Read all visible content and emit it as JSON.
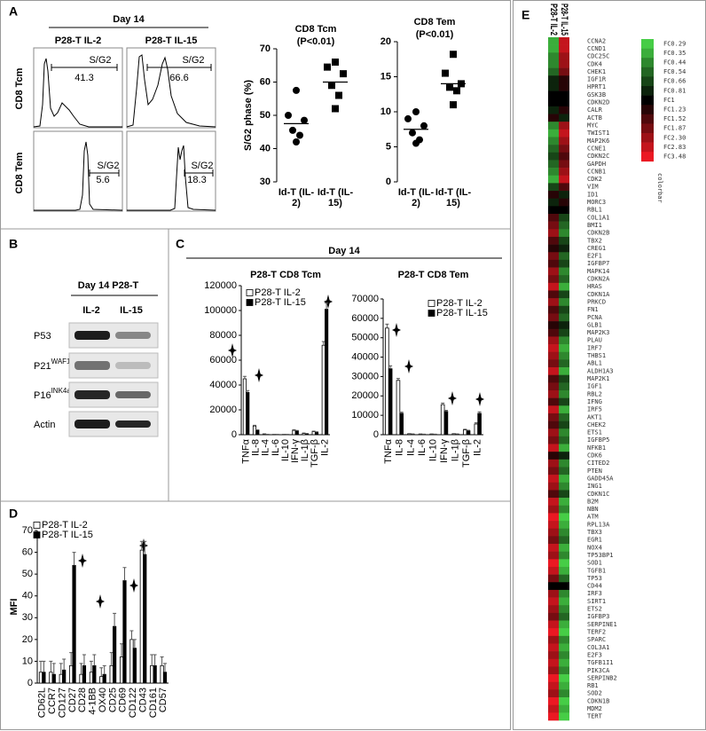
{
  "panels": {
    "A": {
      "label": "A"
    },
    "B": {
      "label": "B"
    },
    "C": {
      "label": "C",
      "title": "Day 14"
    },
    "D": {
      "label": "D"
    },
    "E": {
      "label": "E"
    }
  },
  "flow": {
    "title": "Day 14",
    "columns": [
      "P28-T IL-2",
      "P28-T IL-15"
    ],
    "rows": [
      "CD8 Tcm",
      "CD8 Tem"
    ],
    "gate_label": "S/G2",
    "gate_values": [
      [
        41.3,
        66.6
      ],
      [
        5.6,
        18.3
      ]
    ]
  },
  "blot": {
    "title": "Day 14 P28-T",
    "columns": [
      "IL-2",
      "IL-15"
    ],
    "rows": [
      {
        "name": "P53"
      },
      {
        "name": "P21",
        "sup": "WAF1"
      },
      {
        "name": "P16",
        "sup": "INK4a"
      },
      {
        "name": "Actin"
      }
    ]
  },
  "chart_data": [
    {
      "type": "scatter",
      "title": "CD8 Tcm",
      "subtitle": "(P<0.01)",
      "y_label": "S/G2 phase (%)",
      "categories": [
        "Id-T (IL-2)",
        "Id-T (IL-15)"
      ],
      "markers": [
        "circle",
        "square"
      ],
      "color": "#000000",
      "values": [
        [
          57.5,
          50,
          48.5,
          45.5,
          44,
          42
        ],
        [
          66,
          64.5,
          62.5,
          59,
          56,
          52
        ]
      ],
      "means": [
        47.5,
        60
      ],
      "ylim": [
        30,
        70
      ],
      "yticks": [
        30,
        40,
        50,
        60,
        70
      ]
    },
    {
      "type": "scatter",
      "title": "CD8 Tem",
      "subtitle": "(P<0.01)",
      "categories": [
        "Id-T (IL-2)",
        "Id-T (IL-15)"
      ],
      "markers": [
        "circle",
        "square"
      ],
      "color": "#000000",
      "values": [
        [
          10,
          9,
          8,
          7,
          6,
          5.5
        ],
        [
          18.2,
          15.5,
          14,
          13.5,
          13,
          11
        ]
      ],
      "means": [
        7.5,
        14
      ],
      "ylim": [
        0,
        20
      ],
      "yticks": [
        0,
        5,
        10,
        15,
        20
      ]
    },
    {
      "type": "bar",
      "title": "P28-T CD8 Tcm",
      "categories": [
        "TNFα",
        "IL-8",
        "IL-4",
        "IL-6",
        "IL-10",
        "IFN-γ",
        "IL-1β",
        "TGF-β",
        "IL-2"
      ],
      "legend": "upper left",
      "series": [
        {
          "name": "P28-T IL-2",
          "color": "#ffffff",
          "values": [
            45000,
            7000,
            500,
            300,
            300,
            3500,
            1000,
            2500,
            72000
          ],
          "errors": [
            2000,
            600,
            200,
            100,
            100,
            500,
            300,
            400,
            3000
          ]
        },
        {
          "name": "P28-T IL-15",
          "color": "#000000",
          "values": [
            34000,
            3500,
            300,
            200,
            200,
            3000,
            800,
            2000,
            101000
          ],
          "errors": [
            1500,
            400,
            100,
            100,
            100,
            400,
            200,
            300,
            5000
          ]
        }
      ],
      "ylim": [
        0,
        120000
      ],
      "yticks": [
        0,
        20000,
        40000,
        60000,
        80000,
        100000,
        120000
      ]
    },
    {
      "type": "bar",
      "title": "P28-T CD8 Tem",
      "categories": [
        "TNFα",
        "IL-8",
        "IL-4",
        "IL-6",
        "IL-10",
        "IFN-γ",
        "IL-1β",
        "TGF-β",
        "IL-2"
      ],
      "legend": "upper right",
      "series": [
        {
          "name": "P28-T IL-2",
          "color": "#ffffff",
          "values": [
            55000,
            28000,
            500,
            300,
            300,
            15500,
            500,
            2500,
            5500
          ],
          "errors": [
            2000,
            1000,
            100,
            100,
            100,
            800,
            100,
            300,
            600
          ]
        },
        {
          "name": "P28-T IL-15",
          "color": "#000000",
          "values": [
            34000,
            11000,
            300,
            200,
            200,
            12000,
            300,
            2000,
            11000
          ],
          "errors": [
            1500,
            600,
            100,
            100,
            100,
            600,
            100,
            300,
            800
          ]
        }
      ],
      "ylim": [
        0,
        70000
      ],
      "yticks": [
        0,
        10000,
        20000,
        30000,
        40000,
        50000,
        60000,
        70000
      ]
    },
    {
      "type": "bar",
      "y_label": "MFI",
      "categories": [
        "CD62L",
        "CCR7",
        "CD127",
        "CD27",
        "CD28",
        "4-1BB",
        "OX40",
        "CD25",
        "CD69",
        "CD122",
        "CD43",
        "CD161",
        "CD57"
      ],
      "legend": "upper left",
      "series": [
        {
          "name": "P28-T IL-2",
          "color": "#ffffff",
          "values": [
            5,
            5,
            4,
            8,
            4,
            5,
            3,
            8,
            12,
            20,
            61,
            8,
            8
          ],
          "errors": [
            5,
            5,
            5,
            6,
            5,
            5,
            4,
            6,
            6,
            4,
            4,
            5,
            4
          ]
        },
        {
          "name": "P28-T IL-15",
          "color": "#000000",
          "values": [
            5,
            4,
            6,
            54,
            8,
            8,
            4,
            26,
            47,
            16,
            59,
            8,
            5
          ],
          "errors": [
            5,
            5,
            5,
            6,
            5,
            5,
            4,
            6,
            6,
            4,
            6,
            5,
            4
          ]
        }
      ],
      "ylim": [
        0,
        70
      ],
      "yticks": [
        0,
        10,
        20,
        30,
        40,
        50,
        60,
        70
      ]
    },
    {
      "type": "heatmap",
      "columns": [
        "P28-T IL-2",
        "P28-T IL-15"
      ],
      "rows": [
        "CCNA2",
        "CCND1",
        "CDC25C",
        "CDK4",
        "CHEK1",
        "IGF1R",
        "HPRT1",
        "GSK3B",
        "CDKN2D",
        "CALR",
        "ACTB",
        "MYC",
        "TWIST1",
        "MAP2K6",
        "CCNE1",
        "CDKN2C",
        "GAPDH",
        "CCNB1",
        "CDK2",
        "VIM",
        "ID1",
        "MORC3",
        "RBL1",
        "COL1A1",
        "BMI1",
        "CDKN2B",
        "TBX2",
        "CREG1",
        "E2F1",
        "IGFBP7",
        "MAPK14",
        "CDKN2A",
        "HRAS",
        "CDKN1A",
        "PRKCD",
        "FN1",
        "PCNA",
        "GLB1",
        "MAP2K3",
        "PLAU",
        "IRF7",
        "THBS1",
        "ABL1",
        "ALDH1A3",
        "MAP2K1",
        "IGF1",
        "RBL2",
        "IFNG",
        "IRF5",
        "AKT1",
        "CHEK2",
        "ETS1",
        "IGFBP5",
        "NFKB1",
        "CDK6",
        "CITED2",
        "PTEN",
        "GADD45A",
        "ING1",
        "CDKN1C",
        "B2M",
        "NBN",
        "ATM",
        "RPL13A",
        "TBX3",
        "EGR1",
        "NOX4",
        "TP53BP1",
        "SOD1",
        "TGFB1",
        "TP53",
        "CD44",
        "IRF3",
        "SIRT1",
        "ETS2",
        "IGFBP3",
        "SERPINE1",
        "TERF2",
        "SPARC",
        "COL3A1",
        "E2F3",
        "TGFB1I1",
        "PIK3CA",
        "SERPINB2",
        "RB1",
        "SOD2",
        "CDKN1B",
        "MDM2",
        "TERT"
      ],
      "values": [
        [
          0.35,
          2.83
        ],
        [
          0.35,
          2.83
        ],
        [
          0.44,
          2.3
        ],
        [
          0.44,
          2.3
        ],
        [
          0.54,
          1.87
        ],
        [
          0.81,
          1.23
        ],
        [
          0.81,
          1.23
        ],
        [
          1,
          1
        ],
        [
          1,
          1
        ],
        [
          0.81,
          1.23
        ],
        [
          1.23,
          0.81
        ],
        [
          0.44,
          2.3
        ],
        [
          0.35,
          2.83
        ],
        [
          0.44,
          2.3
        ],
        [
          0.54,
          1.87
        ],
        [
          0.66,
          1.52
        ],
        [
          0.54,
          1.87
        ],
        [
          0.44,
          2.3
        ],
        [
          0.35,
          2.83
        ],
        [
          0.66,
          1.52
        ],
        [
          1.23,
          0.81
        ],
        [
          0.81,
          1.23
        ],
        [
          1,
          1
        ],
        [
          1.52,
          0.66
        ],
        [
          1.87,
          0.54
        ],
        [
          2.3,
          0.44
        ],
        [
          1.52,
          0.66
        ],
        [
          1.23,
          0.81
        ],
        [
          1.87,
          0.54
        ],
        [
          1.52,
          0.66
        ],
        [
          2.3,
          0.44
        ],
        [
          1.87,
          0.54
        ],
        [
          2.83,
          0.35
        ],
        [
          1.52,
          0.66
        ],
        [
          2.3,
          0.44
        ],
        [
          1.52,
          0.66
        ],
        [
          1.87,
          0.54
        ],
        [
          1.23,
          0.81
        ],
        [
          1.52,
          0.66
        ],
        [
          2.3,
          0.44
        ],
        [
          2.83,
          0.35
        ],
        [
          2.3,
          0.44
        ],
        [
          1.87,
          0.54
        ],
        [
          2.83,
          0.35
        ],
        [
          1.52,
          0.66
        ],
        [
          1.87,
          0.54
        ],
        [
          2.3,
          0.44
        ],
        [
          1.52,
          0.66
        ],
        [
          2.83,
          0.35
        ],
        [
          1.87,
          0.54
        ],
        [
          1.52,
          0.66
        ],
        [
          2.3,
          0.44
        ],
        [
          1.87,
          0.54
        ],
        [
          2.83,
          0.35
        ],
        [
          1.23,
          0.81
        ],
        [
          2.3,
          0.44
        ],
        [
          1.87,
          0.54
        ],
        [
          2.83,
          0.35
        ],
        [
          2.3,
          0.44
        ],
        [
          1.52,
          0.66
        ],
        [
          2.83,
          0.35
        ],
        [
          2.3,
          0.44
        ],
        [
          3.48,
          0.29
        ],
        [
          2.83,
          0.35
        ],
        [
          2.3,
          0.44
        ],
        [
          1.87,
          0.54
        ],
        [
          2.83,
          0.35
        ],
        [
          2.3,
          0.44
        ],
        [
          3.48,
          0.29
        ],
        [
          2.83,
          0.35
        ],
        [
          1.87,
          0.54
        ],
        [
          1,
          1
        ],
        [
          2.3,
          0.44
        ],
        [
          2.83,
          0.35
        ],
        [
          2.3,
          0.44
        ],
        [
          1.87,
          0.54
        ],
        [
          2.83,
          0.35
        ],
        [
          3.48,
          0.29
        ],
        [
          2.3,
          0.44
        ],
        [
          2.83,
          0.35
        ],
        [
          2.3,
          0.44
        ],
        [
          2.83,
          0.35
        ],
        [
          2.3,
          0.44
        ],
        [
          3.48,
          0.29
        ],
        [
          2.83,
          0.35
        ],
        [
          2.3,
          0.44
        ],
        [
          3.48,
          0.29
        ],
        [
          2.83,
          0.35
        ],
        [
          3.48,
          0.29
        ]
      ],
      "colorbar_label": "colorbar",
      "colorbar_ticks": [
        {
          "value": 0.29,
          "label": "FC0.29"
        },
        {
          "value": 0.35,
          "label": "FC0.35"
        },
        {
          "value": 0.44,
          "label": "FC0.44"
        },
        {
          "value": 0.54,
          "label": "FC0.54"
        },
        {
          "value": 0.66,
          "label": "FC0.66"
        },
        {
          "value": 0.81,
          "label": "FC0.81"
        },
        {
          "value": 1,
          "label": "FC1"
        },
        {
          "value": 1.23,
          "label": "FC1.23"
        },
        {
          "value": 1.52,
          "label": "FC1.52"
        },
        {
          "value": 1.87,
          "label": "FC1.87"
        },
        {
          "value": 2.3,
          "label": "FC2.30"
        },
        {
          "value": 2.83,
          "label": "FC2.83"
        },
        {
          "value": 3.48,
          "label": "FC3.48"
        }
      ]
    }
  ]
}
